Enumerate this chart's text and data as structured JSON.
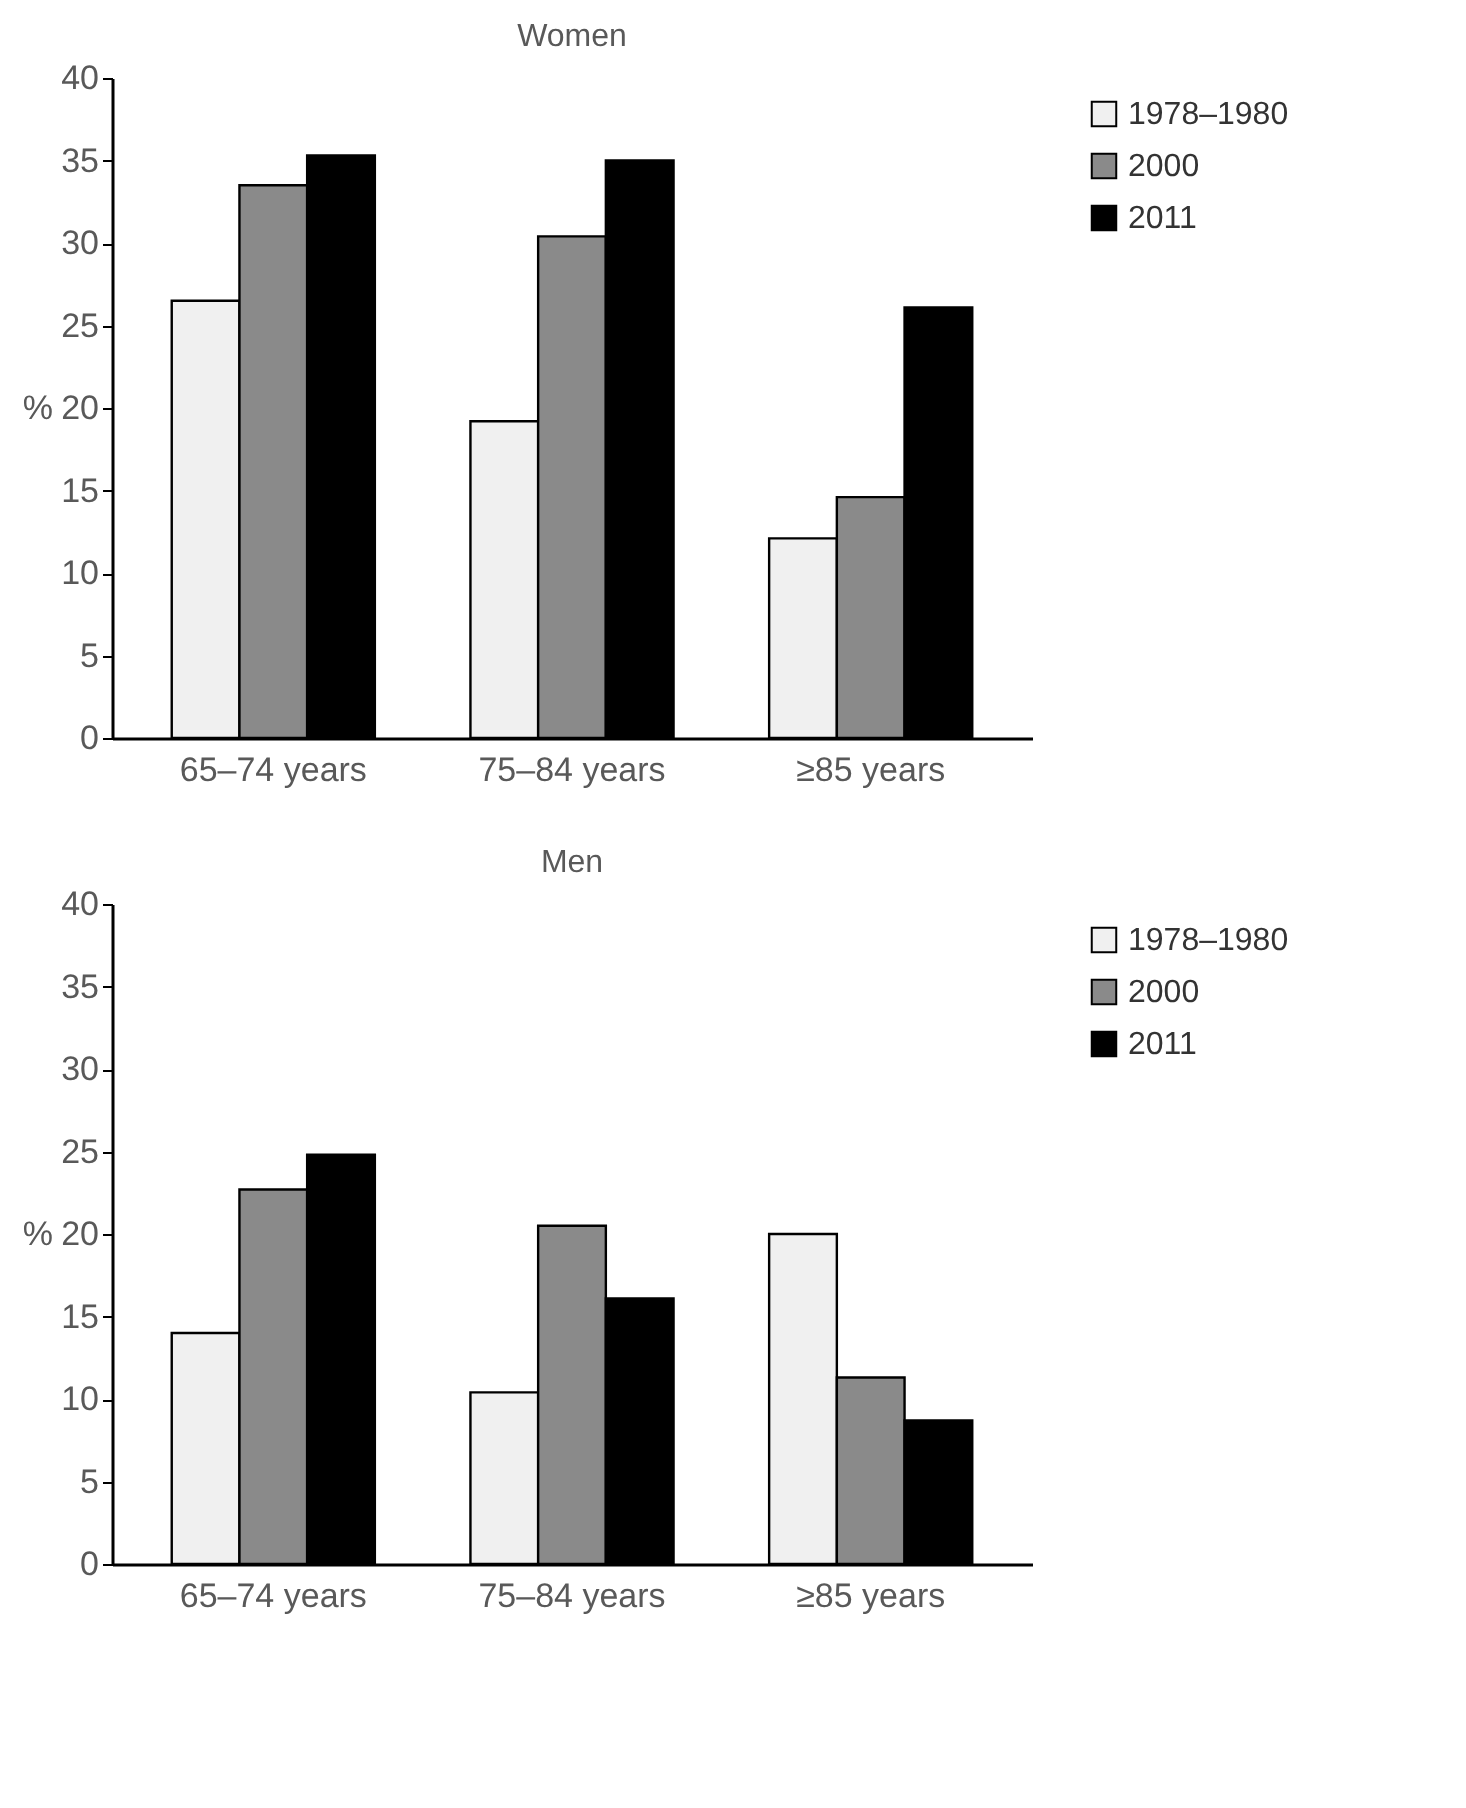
{
  "chart_data": [
    {
      "type": "bar",
      "title": "Women",
      "ylabel": "%",
      "categories": [
        "65–74 years",
        "75–84 years",
        "≥85 years"
      ],
      "ylim": [
        0,
        40
      ],
      "yticks": [
        0,
        5,
        10,
        15,
        20,
        25,
        30,
        35,
        40
      ],
      "grid": false,
      "legend": "right",
      "series": [
        {
          "name": "1978–1980",
          "color": "#f0f0f0",
          "values": [
            26.5,
            19.2,
            12.1
          ]
        },
        {
          "name": "2000",
          "color": "#8a8a8a",
          "values": [
            33.5,
            30.4,
            14.6
          ]
        },
        {
          "name": "2011",
          "color": "#000000",
          "values": [
            35.3,
            35.0,
            26.1
          ]
        }
      ]
    },
    {
      "type": "bar",
      "title": "Men",
      "ylabel": "%",
      "categories": [
        "65–74 years",
        "75–84 years",
        "≥85 years"
      ],
      "ylim": [
        0,
        40
      ],
      "yticks": [
        0,
        5,
        10,
        15,
        20,
        25,
        30,
        35,
        40
      ],
      "grid": false,
      "legend": "right",
      "series": [
        {
          "name": "1978–1980",
          "color": "#f0f0f0",
          "values": [
            14.0,
            10.4,
            20.0
          ]
        },
        {
          "name": "2000",
          "color": "#8a8a8a",
          "values": [
            22.7,
            20.5,
            11.3
          ]
        },
        {
          "name": "2011",
          "color": "#000000",
          "values": [
            24.8,
            16.1,
            8.7
          ]
        }
      ]
    }
  ]
}
